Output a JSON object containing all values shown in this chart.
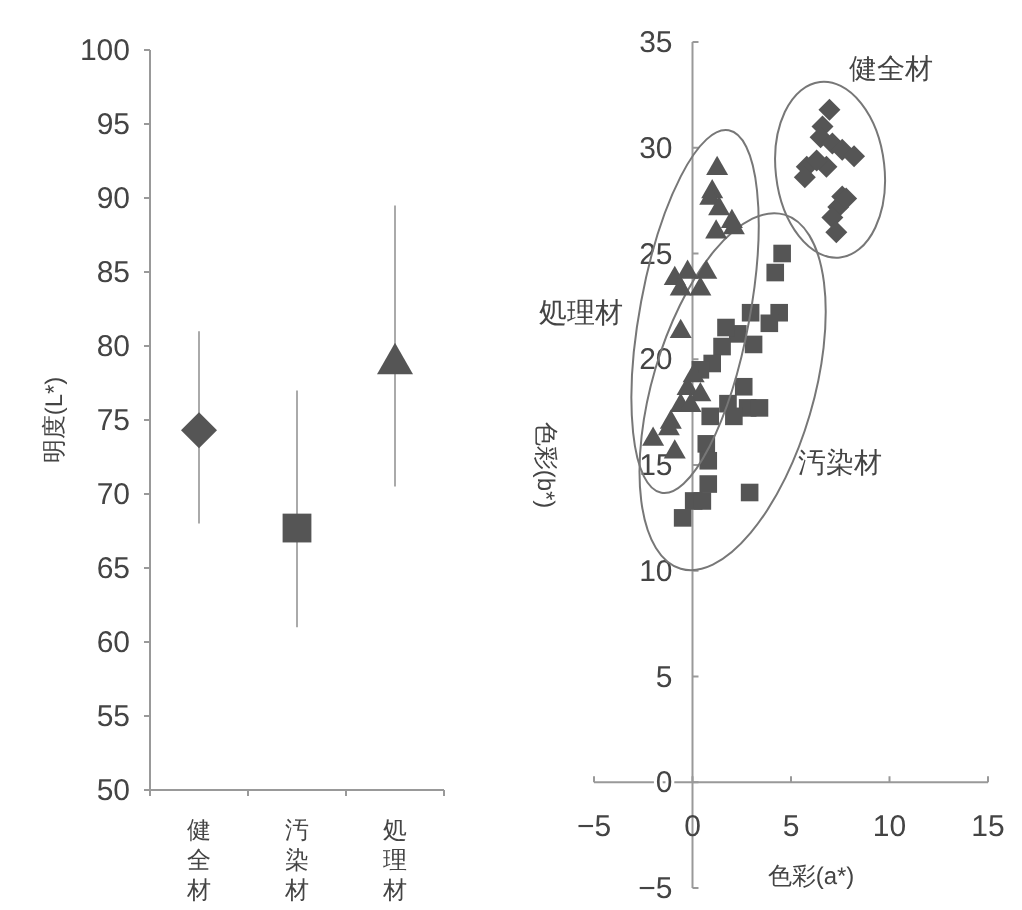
{
  "chart_data": [
    {
      "type": "scatter",
      "ylabel": "明度(L*)",
      "categories": [
        "健全材",
        "汚染材",
        "処理材"
      ],
      "ylim": [
        50,
        100
      ],
      "yticks": [
        50,
        55,
        60,
        65,
        70,
        75,
        80,
        85,
        90,
        95,
        100
      ],
      "series": [
        {
          "marker": "diamond",
          "color": "#555555",
          "values": [
            74.3,
            null,
            null
          ],
          "errors": [
            [
              68,
              81
            ],
            null,
            null
          ]
        },
        {
          "marker": "square",
          "color": "#555555",
          "values": [
            null,
            67.7,
            null
          ],
          "errors": [
            null,
            [
              61,
              77
            ],
            null
          ]
        },
        {
          "marker": "triangle",
          "color": "#555555",
          "values": [
            null,
            null,
            79
          ],
          "errors": [
            null,
            null,
            [
              70.5,
              89.5
            ]
          ]
        }
      ]
    },
    {
      "type": "scatter",
      "xlabel": "色彩(a*)",
      "ylabel": "色彩(b*)",
      "xlim": [
        -5,
        15
      ],
      "ylim": [
        -5,
        35
      ],
      "xticks": [
        -5,
        0,
        5,
        10,
        15
      ],
      "yticks": [
        -5,
        0,
        5,
        10,
        15,
        20,
        25,
        30,
        35
      ],
      "series": [
        {
          "name": "健全材",
          "marker": "diamond",
          "color": "#555555",
          "x": [
            6.95,
            6.6,
            6.5,
            7.1,
            7.6,
            8.2,
            5.8,
            5.7,
            6.8,
            6.3,
            7.6,
            7.4,
            7.1,
            7.3,
            7.8
          ],
          "values": [
            31.8,
            31.0,
            30.5,
            30.2,
            29.9,
            29.6,
            29.1,
            28.6,
            29.1,
            29.4,
            27.7,
            27.2,
            26.7,
            26.0,
            27.6
          ]
        },
        {
          "name": "汚染材",
          "marker": "square",
          "color": "#555555",
          "x": [
            4.55,
            4.2,
            4.4,
            2.95,
            3.9,
            2.3,
            1.7,
            3.1,
            1.5,
            1.0,
            0.4,
            2.6,
            1.8,
            2.8,
            3.4,
            0.9,
            2.1,
            0.7,
            0.8,
            0.8,
            0.06,
            0.5,
            2.9,
            -0.5
          ],
          "values": [
            25.0,
            24.1,
            22.2,
            22.2,
            21.7,
            21.2,
            21.5,
            20.7,
            20.6,
            19.8,
            19.5,
            18.7,
            17.9,
            17.7,
            17.7,
            17.3,
            17.3,
            16.0,
            15.2,
            14.1,
            13.3,
            13.3,
            13.7,
            12.5
          ]
        },
        {
          "name": "処理材",
          "marker": "triangle",
          "color": "#555555",
          "x": [
            1.25,
            1.0,
            0.9,
            1.35,
            2.0,
            1.2,
            2.1,
            -0.9,
            -0.25,
            0.7,
            0.4,
            -0.6,
            -0.6,
            0.06,
            -0.25,
            0.4,
            -0.6,
            -1.1,
            -2.0,
            -1.2,
            -0.9,
            -0.1
          ],
          "values": [
            29.1,
            28.0,
            27.7,
            27.2,
            26.6,
            26.1,
            26.3,
            23.9,
            24.2,
            24.2,
            23.4,
            23.4,
            21.4,
            19.3,
            18.7,
            18.4,
            17.9,
            17.1,
            16.3,
            16.8,
            15.7,
            17.9
          ]
        }
      ]
    }
  ]
}
